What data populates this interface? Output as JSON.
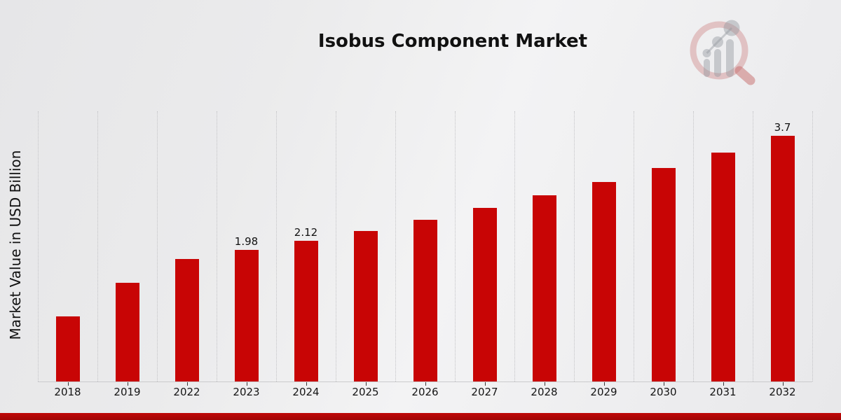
{
  "header": {
    "title": "Isobus Component Market"
  },
  "watermark": {
    "icon": "magnifier-bar-chart-logo",
    "ring_color": "rgba(203,122,122,0.38)",
    "bar_color": "rgba(148,152,160,0.45)",
    "dot_color": "rgba(148,152,160,0.45)",
    "handle_color": "rgba(198,105,105,0.5)"
  },
  "chart_data": {
    "type": "bar",
    "title": "Isobus Component Market",
    "xlabel": "",
    "ylabel": "Market Value in USD Billion",
    "categories": [
      "2018",
      "2019",
      "2022",
      "2023",
      "2024",
      "2025",
      "2026",
      "2027",
      "2028",
      "2029",
      "2030",
      "2031",
      "2032"
    ],
    "values": [
      0.98,
      1.49,
      1.85,
      1.98,
      2.12,
      2.27,
      2.44,
      2.61,
      2.8,
      3.0,
      3.22,
      3.45,
      3.7
    ],
    "bar_labels": [
      "",
      "",
      "",
      "1.98",
      "2.12",
      "",
      "",
      "",
      "",
      "",
      "",
      "",
      "3.7"
    ],
    "bar_color": "#c80505",
    "ylim": [
      0,
      4.07
    ],
    "grid": "vertical-dotted",
    "legend": "none",
    "accent_strip_color": "#b40707"
  }
}
